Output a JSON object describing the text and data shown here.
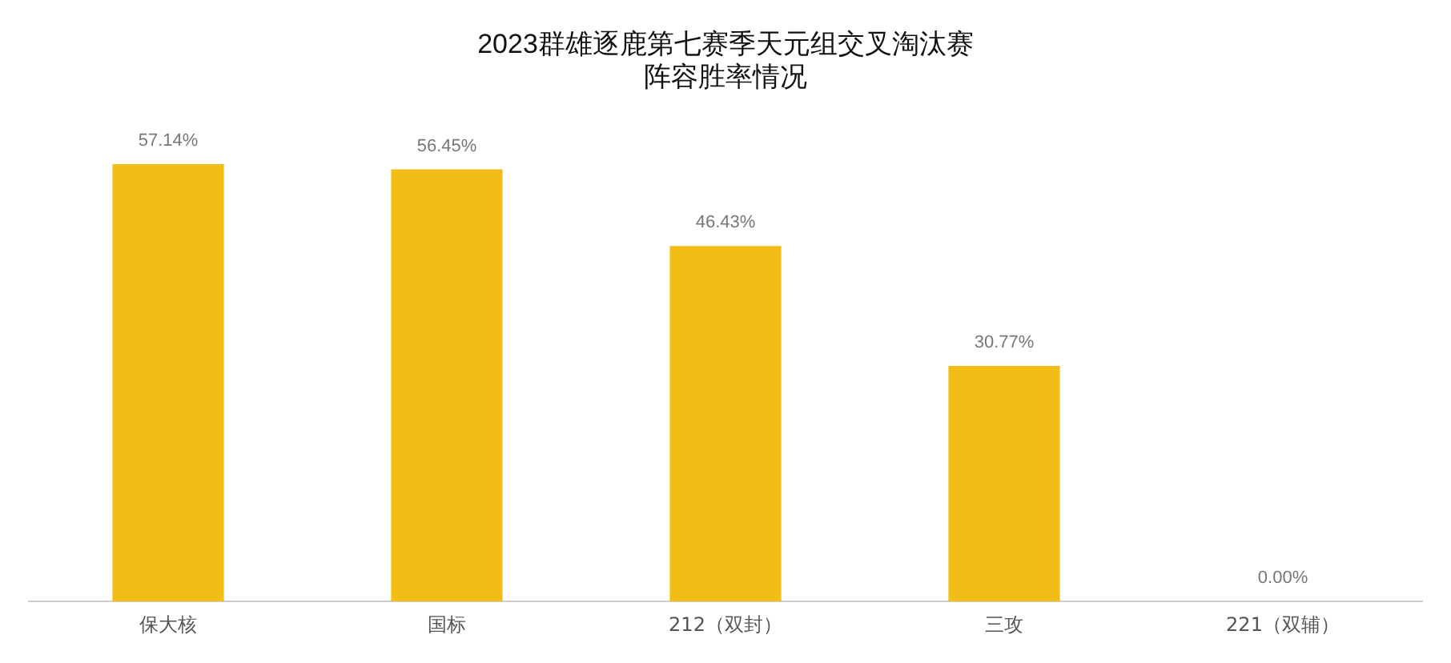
{
  "chart_data": {
    "type": "bar",
    "title": [
      "2023群雄逐鹿第七赛季天元组交叉淘汰赛",
      "阵容胜率情况"
    ],
    "categories": [
      "保大核",
      "国标",
      "212（双封）",
      "三攻",
      "221（双辅）"
    ],
    "series": [
      {
        "color": "#f2be16",
        "values": [
          57.14,
          56.45,
          46.43,
          30.77,
          0.0
        ],
        "value_labels": [
          "57.14%",
          "56.45%",
          "46.43%",
          "30.77%",
          "0.00%"
        ]
      }
    ],
    "grid": false,
    "legend": false
  }
}
